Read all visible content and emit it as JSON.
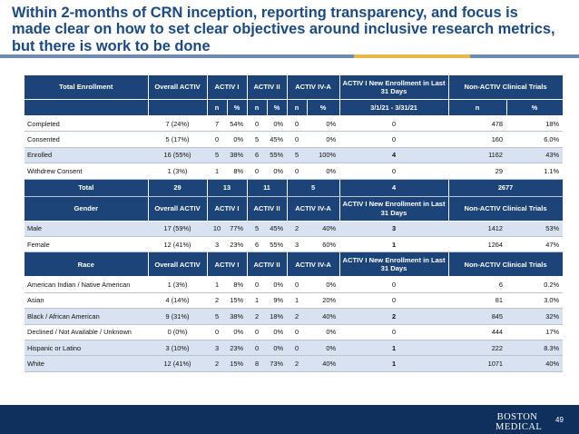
{
  "title": "Within 2-months of CRN inception, reporting transparency, and focus is made clear on how to set clear objectives around inclusive research metrics, but there is work to be done",
  "colors": {
    "header_bg": "#1c4478",
    "row_shade": "#d9e2f0",
    "title": "#1c4a80",
    "footer": "#0f2f5c",
    "accent_gold": "#e8b64a",
    "accent_steel": "#6e8bb3"
  },
  "enrollment_section": {
    "headers": [
      "Total Enrollment",
      "Overall ACTIV",
      "ACTIV I",
      "ACTIV II",
      "ACTIV IV-A",
      "ACTIV I New Enrollment in Last 31 Days",
      "Non-ACTIV Clinical Trials"
    ],
    "subheaders": [
      "n",
      "%",
      "n",
      "%",
      "n",
      "%",
      "3/1/21 - 3/31/21",
      "n",
      "%"
    ],
    "rows": [
      {
        "label": "Completed",
        "overall": "7 (24%)",
        "a1_n": "7",
        "a1_p": "54%",
        "a2_n": "0",
        "a2_p": "0%",
        "a4_n": "0",
        "a4_p": "0%",
        "new": "0",
        "non_n": "478",
        "non_p": "18%"
      },
      {
        "label": "Consented",
        "overall": "5 (17%)",
        "a1_n": "0",
        "a1_p": "0%",
        "a2_n": "5",
        "a2_p": "45%",
        "a4_n": "0",
        "a4_p": "0%",
        "new": "0",
        "non_n": "160",
        "non_p": "6.0%"
      },
      {
        "label": "Enrolled",
        "overall": "16 (55%)",
        "a1_n": "5",
        "a1_p": "38%",
        "a2_n": "6",
        "a2_p": "55%",
        "a4_n": "5",
        "a4_p": "100%",
        "new": "4",
        "non_n": "1162",
        "non_p": "43%"
      },
      {
        "label": "Withdrew Consent",
        "overall": "1 (3%)",
        "a1_n": "1",
        "a1_p": "8%",
        "a2_n": "0",
        "a2_p": "0%",
        "a4_n": "0",
        "a4_p": "0%",
        "new": "0",
        "non_n": "29",
        "non_p": "1.1%"
      }
    ],
    "total": {
      "label": "Total",
      "overall": "29",
      "a1": "13",
      "a2": "11",
      "a4": "5",
      "new": "4",
      "non": "2677"
    }
  },
  "gender_section": {
    "headers": [
      "Gender",
      "Overall ACTIV",
      "ACTIV I",
      "ACTIV II",
      "ACTIV IV-A",
      "ACTIV I New Enrollment in Last 31 Days",
      "Non-ACTIV Clinical Trials"
    ],
    "rows": [
      {
        "label": "Male",
        "overall": "17 (59%)",
        "a1_n": "10",
        "a1_p": "77%",
        "a2_n": "5",
        "a2_p": "45%",
        "a4_n": "2",
        "a4_p": "40%",
        "new": "3",
        "non_n": "1412",
        "non_p": "53%"
      },
      {
        "label": "Female",
        "overall": "12 (41%)",
        "a1_n": "3",
        "a1_p": "23%",
        "a2_n": "6",
        "a2_p": "55%",
        "a4_n": "3",
        "a4_p": "60%",
        "new": "1",
        "non_n": "1264",
        "non_p": "47%"
      }
    ]
  },
  "race_section": {
    "headers": [
      "Race",
      "Overall ACTIV",
      "ACTIV I",
      "ACTIV II",
      "ACTIV IV-A",
      "ACTIV I New Enrollment in Last 31 Days",
      "Non-ACTIV Clinical Trials"
    ],
    "rows": [
      {
        "label": "American Indian / Native American",
        "overall": "1 (3%)",
        "a1_n": "1",
        "a1_p": "8%",
        "a2_n": "0",
        "a2_p": "0%",
        "a4_n": "0",
        "a4_p": "0%",
        "new": "0",
        "non_n": "6",
        "non_p": "0.2%"
      },
      {
        "label": "Asian",
        "overall": "4 (14%)",
        "a1_n": "2",
        "a1_p": "15%",
        "a2_n": "1",
        "a2_p": "9%",
        "a4_n": "1",
        "a4_p": "20%",
        "new": "0",
        "non_n": "81",
        "non_p": "3.0%"
      },
      {
        "label": "Black / African American",
        "overall": "9 (31%)",
        "a1_n": "5",
        "a1_p": "38%",
        "a2_n": "2",
        "a2_p": "18%",
        "a4_n": "2",
        "a4_p": "40%",
        "new": "2",
        "non_n": "845",
        "non_p": "32%"
      },
      {
        "label": "Declined / Not Available / Unknown",
        "overall": "0 (0%)",
        "a1_n": "0",
        "a1_p": "0%",
        "a2_n": "0",
        "a2_p": "0%",
        "a4_n": "0",
        "a4_p": "0%",
        "new": "0",
        "non_n": "444",
        "non_p": "17%"
      },
      {
        "label": "Hispanic or Latino",
        "overall": "3 (10%)",
        "a1_n": "3",
        "a1_p": "23%",
        "a2_n": "0",
        "a2_p": "0%",
        "a4_n": "0",
        "a4_p": "0%",
        "new": "1",
        "non_n": "222",
        "non_p": "8.3%"
      },
      {
        "label": "White",
        "overall": "12 (41%)",
        "a1_n": "2",
        "a1_p": "15%",
        "a2_n": "8",
        "a2_p": "73%",
        "a4_n": "2",
        "a4_p": "40%",
        "new": "1",
        "non_n": "1071",
        "non_p": "40%"
      }
    ]
  },
  "footer": {
    "logo_line1": "BOSTON",
    "logo_line2": "MEDICAL",
    "page_number": "49"
  }
}
